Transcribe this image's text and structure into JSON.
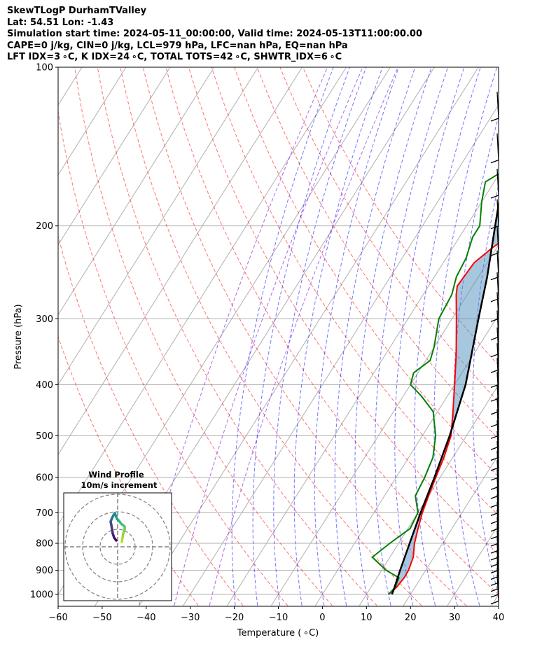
{
  "title_lines": [
    "SkewTLogP DurhamTValley",
    "Lat: 54.51   Lon: -1.43",
    "Simulation start time: 2024-05-11_00:00:00, Valid time: 2024-05-13T11:00:00.00",
    "CAPE=0 j/kg, CIN=0 j/kg, LCL=979 hPa, LFC=nan hPa, EQ=nan hPa",
    "LFT IDX=3 ∘C, K IDX=24 ∘C, TOTAL TOTS=42 ∘C, SHWTR_IDX=6 ∘C"
  ],
  "chart_data": {
    "type": "skewt",
    "xlabel": "Temperature ( ∘C)",
    "ylabel": "Pressure (hPa)",
    "xlim": [
      -60,
      40
    ],
    "ylim_hpa": [
      1050,
      100
    ],
    "x_ticks": [
      -60,
      -50,
      -40,
      -30,
      -20,
      -10,
      0,
      10,
      20,
      30,
      40
    ],
    "p_ticks": [
      1000,
      900,
      800,
      700,
      600,
      500,
      400,
      300,
      200,
      100
    ],
    "grid": true,
    "series": [
      {
        "role": "temperature",
        "color": "#ff0000",
        "points": [
          [
            1000,
            15
          ],
          [
            970,
            15.8
          ],
          [
            930,
            16.2
          ],
          [
            900,
            16.1
          ],
          [
            850,
            15.3
          ],
          [
            800,
            13.6
          ],
          [
            750,
            12.3
          ],
          [
            700,
            11
          ],
          [
            650,
            10
          ],
          [
            600,
            9
          ],
          [
            550,
            8
          ],
          [
            500,
            6.5
          ],
          [
            450,
            3.5
          ],
          [
            400,
            0
          ],
          [
            350,
            -4
          ],
          [
            300,
            -9
          ],
          [
            270,
            -12.5
          ],
          [
            260,
            -13.5
          ],
          [
            235,
            -13
          ],
          [
            220,
            -11
          ],
          [
            200,
            -7
          ],
          [
            180,
            -2
          ],
          [
            160,
            2
          ],
          [
            140,
            5
          ],
          [
            125,
            8
          ],
          [
            110,
            11
          ],
          [
            100,
            12
          ]
        ]
      },
      {
        "role": "dewpoint",
        "color": "#008000",
        "points": [
          [
            1000,
            15
          ],
          [
            970,
            15.5
          ],
          [
            930,
            15
          ],
          [
            900,
            11
          ],
          [
            850,
            6
          ],
          [
            800,
            8
          ],
          [
            750,
            10.5
          ],
          [
            700,
            10
          ],
          [
            650,
            7
          ],
          [
            600,
            6.5
          ],
          [
            550,
            5.5
          ],
          [
            500,
            3
          ],
          [
            450,
            -1
          ],
          [
            420,
            -6
          ],
          [
            400,
            -10
          ],
          [
            380,
            -11
          ],
          [
            360,
            -9
          ],
          [
            340,
            -10
          ],
          [
            300,
            -13
          ],
          [
            270,
            -13.5
          ],
          [
            250,
            -15
          ],
          [
            230,
            -15.5
          ],
          [
            210,
            -17
          ],
          [
            200,
            -17
          ],
          [
            180,
            -20
          ],
          [
            165,
            -22
          ],
          [
            150,
            -17
          ],
          [
            130,
            -10
          ],
          [
            115,
            -4
          ],
          [
            100,
            0
          ]
        ]
      },
      {
        "role": "parcel",
        "color": "#000000",
        "points": [
          [
            1000,
            15.8
          ],
          [
            979,
            15.5
          ],
          [
            900,
            14.2
          ],
          [
            800,
            12.5
          ],
          [
            700,
            10.6
          ],
          [
            600,
            8.7
          ],
          [
            500,
            6.2
          ],
          [
            400,
            2.5
          ],
          [
            300,
            -4
          ],
          [
            250,
            -8
          ],
          [
            200,
            -13.5
          ],
          [
            150,
            -20.5
          ],
          [
            100,
            -34
          ]
        ]
      }
    ],
    "inset": {
      "title": "Wind Profile",
      "subtitle": "10m/s increment",
      "rings": 3
    }
  }
}
